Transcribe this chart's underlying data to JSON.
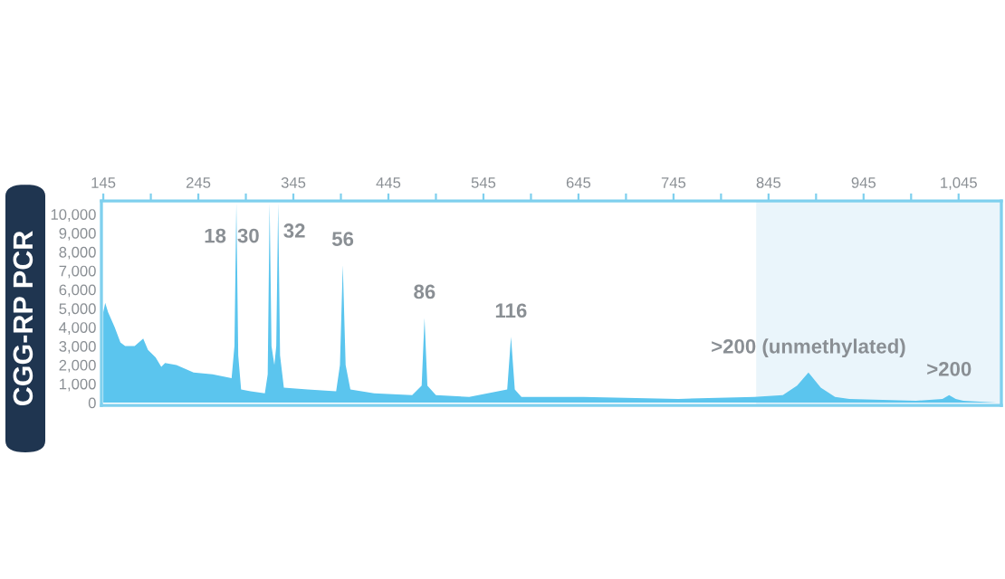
{
  "chart_data": {
    "type": "area",
    "ylabel": "CGG-RP PCR",
    "x": [
      145,
      147,
      150,
      157,
      163,
      168,
      178,
      187,
      192,
      200,
      206,
      210,
      222,
      240,
      260,
      280,
      283,
      285,
      287,
      290,
      300,
      315,
      318,
      320,
      322,
      325,
      327,
      329,
      331,
      335,
      360,
      390,
      394,
      397,
      400,
      405,
      430,
      470,
      480,
      483,
      486,
      495,
      530,
      570,
      574,
      578,
      585,
      650,
      750,
      830,
      860,
      875,
      887,
      900,
      915,
      930,
      1000,
      1028,
      1035,
      1042,
      1050,
      1085
    ],
    "series": [
      {
        "color": "#5bc5ee",
        "values": [
          4800,
          5300,
          4800,
          4000,
          3200,
          3000,
          3000,
          3400,
          2800,
          2400,
          1900,
          2100,
          2000,
          1600,
          1500,
          1300,
          3000,
          10600,
          2500,
          700,
          600,
          500,
          1500,
          10600,
          3000,
          2000,
          3000,
          10600,
          2500,
          800,
          700,
          600,
          2000,
          7300,
          2000,
          700,
          500,
          400,
          900,
          4500,
          900,
          400,
          300,
          700,
          3500,
          700,
          300,
          300,
          200,
          300,
          400,
          900,
          1600,
          800,
          300,
          200,
          100,
          200,
          400,
          200,
          100,
          0
        ]
      }
    ],
    "xlim": [
      143,
      1090
    ],
    "ylim": [
      -150,
      10700
    ],
    "xticks": [
      145,
      {
        "value": 195,
        "label": null
      },
      245,
      {
        "value": 295,
        "label": null
      },
      345,
      {
        "value": 395,
        "label": null
      },
      445,
      {
        "value": 495,
        "label": null
      },
      545,
      {
        "value": 595,
        "label": null
      },
      645,
      {
        "value": 695,
        "label": null
      },
      745,
      {
        "value": 795,
        "label": null
      },
      845,
      {
        "value": 895,
        "label": null
      },
      945,
      {
        "value": 995,
        "label": null
      },
      {
        "value": 1045,
        "label": "1,045"
      }
    ],
    "yticks": [
      0,
      {
        "value": 1000,
        "label": "1,000"
      },
      {
        "value": 2000,
        "label": "2,000"
      },
      {
        "value": 3000,
        "label": "3,000"
      },
      {
        "value": 4000,
        "label": "4,000"
      },
      {
        "value": 5000,
        "label": "5,000"
      },
      {
        "value": 6000,
        "label": "6,000"
      },
      {
        "value": 7000,
        "label": "7,000"
      },
      {
        "value": 8000,
        "label": "8,000"
      },
      {
        "value": 9000,
        "label": "9,000"
      },
      {
        "value": 10000,
        "label": "10,000"
      }
    ],
    "bands": [
      {
        "axis": "x",
        "from": 832,
        "to": 1090,
        "color": "#eaf5fb"
      }
    ],
    "grid": false,
    "legend": false,
    "annotations": [
      {
        "text": "18",
        "x": 285,
        "y": 10600
      },
      {
        "text": "30",
        "x": 320,
        "y": 10600
      },
      {
        "text": "32",
        "x": 329,
        "y": 10600
      },
      {
        "text": "56",
        "x": 397,
        "y": 7300
      },
      {
        "text": "86",
        "x": 483,
        "y": 4500
      },
      {
        "text": "116",
        "x": 574,
        "y": 3500
      },
      {
        "text": ">200 (unmethylated)",
        "x": 887,
        "y": 1600
      },
      {
        "text": ">200",
        "x": 1035,
        "y": 400
      }
    ]
  }
}
